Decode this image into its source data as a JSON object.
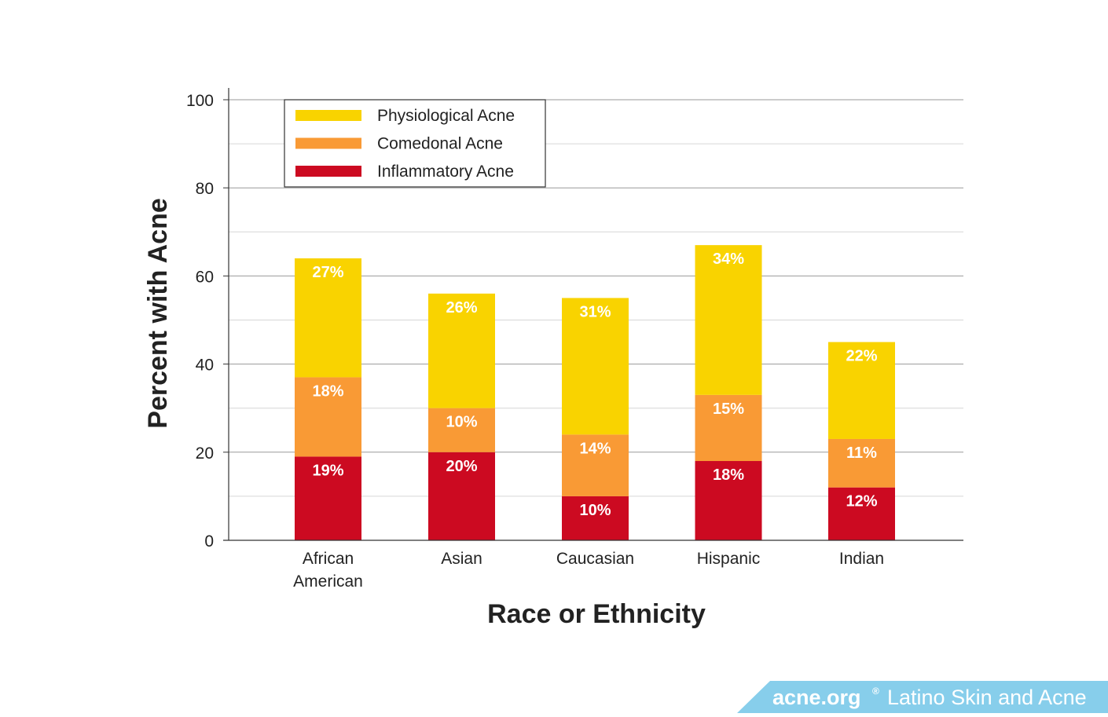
{
  "chart_data": {
    "type": "bar",
    "stacked": true,
    "categories": [
      [
        "African",
        "American"
      ],
      [
        "Asian"
      ],
      [
        "Caucasian"
      ],
      [
        "Hispanic"
      ],
      [
        "Indian"
      ]
    ],
    "series": [
      {
        "name": "Inflammatory Acne",
        "values": [
          19,
          20,
          10,
          18,
          12
        ],
        "labels": [
          "19%",
          "20%",
          "10%",
          "18%",
          "12%"
        ],
        "color": "#cc0a21"
      },
      {
        "name": "Comedonal Acne",
        "values": [
          18,
          10,
          14,
          15,
          11
        ],
        "labels": [
          "18%",
          "10%",
          "14%",
          "15%",
          "11%"
        ],
        "color": "#f99a35"
      },
      {
        "name": "Physiological Acne",
        "values": [
          27,
          26,
          31,
          34,
          22
        ],
        "labels": [
          "27%",
          "26%",
          "31%",
          "34%",
          "22%"
        ],
        "color": "#f9d300"
      }
    ],
    "xlabel": "Race or Ethnicity",
    "ylabel": "Percent with Acne",
    "ylim": [
      0,
      100
    ],
    "yticks": [
      0,
      20,
      40,
      60,
      80,
      100
    ],
    "grid": true,
    "legend": {
      "placement": "top-left",
      "order": [
        "Physiological Acne",
        "Comedonal Acne",
        "Inflammatory Acne"
      ]
    }
  },
  "banner": {
    "brand": "acne.org",
    "registered": "®",
    "title": "Latino Skin and Acne",
    "color": "#87ceeb"
  }
}
